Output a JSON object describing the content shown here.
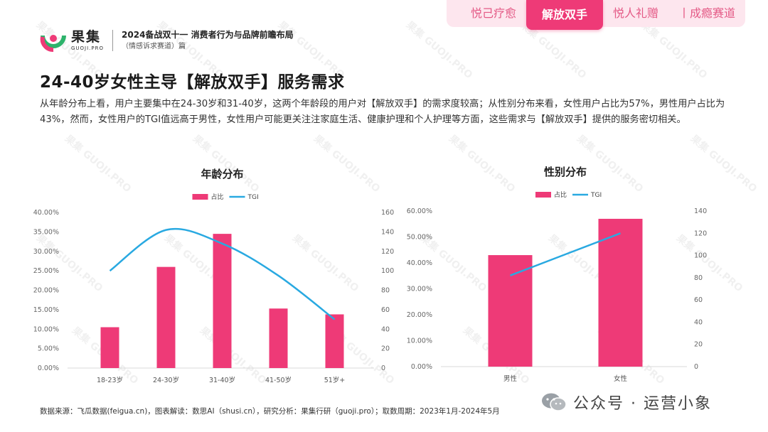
{
  "header": {
    "logo_cn": "果集",
    "logo_en": "GUOJI.PRO",
    "report_title": "2024备战双十一 消费者行为与品牌前瞻布局",
    "report_subtitle": "（情感诉求赛道）篇"
  },
  "tabs": [
    {
      "label": "悦己疗愈",
      "active": false
    },
    {
      "label": "解放双手",
      "active": true
    },
    {
      "label": "悦人礼赠",
      "active": false
    },
    {
      "label": "丨成瘾赛道",
      "active": false
    }
  ],
  "headline": "24-40岁女性主导【解放双手】服务需求",
  "description": "从年龄分布上看，用户主要集中在24-30岁和31-40岁，这两个年龄段的用户对【解放双手】的需求度较高；从性别分布来看，女性用户占比为57%，男性用户占比为43%，然而，女性用户的TGI值远高于男性，女性用户可能更关注注家庭生活、健康护理和个人护理等方面，这些需求与【解放双手】提供的服务密切相关。",
  "colors": {
    "bar": "#ee3a77",
    "line": "#29a9e1",
    "accent": "#ee3a77",
    "tab_bg": "#fde6ee"
  },
  "chart_data": [
    {
      "type": "bar",
      "title": "年龄分布",
      "legend": [
        "占比",
        "TGI"
      ],
      "categories": [
        "18-23岁",
        "24-30岁",
        "31-40岁",
        "41-50岁",
        "51岁+"
      ],
      "series": [
        {
          "name": "占比",
          "type": "bar",
          "axis": "left",
          "values": [
            10.5,
            26.0,
            34.5,
            15.3,
            13.8
          ]
        },
        {
          "name": "TGI",
          "type": "line",
          "axis": "right",
          "values": [
            100,
            142,
            128,
            95,
            50
          ]
        }
      ],
      "y_left": {
        "min": 0,
        "max": 40,
        "step": 5,
        "ticks": [
          "0.00%",
          "5.00%",
          "10.00%",
          "15.00%",
          "20.00%",
          "25.00%",
          "30.00%",
          "35.00%",
          "40.00%"
        ]
      },
      "y_right": {
        "min": 0,
        "max": 160,
        "step": 20,
        "ticks": [
          "0",
          "20",
          "40",
          "60",
          "80",
          "100",
          "120",
          "140",
          "160"
        ]
      },
      "grid": false,
      "legend_position": "top-center"
    },
    {
      "type": "bar",
      "title": "性别分布",
      "legend": [
        "占比",
        "TGI"
      ],
      "categories": [
        "男性",
        "女性"
      ],
      "series": [
        {
          "name": "占比",
          "type": "bar",
          "axis": "left",
          "values": [
            43,
            57
          ]
        },
        {
          "name": "TGI",
          "type": "line",
          "axis": "right",
          "values": [
            82,
            120
          ]
        }
      ],
      "y_left": {
        "min": 0,
        "max": 60,
        "step": 10,
        "ticks": [
          "0.00%",
          "10.00%",
          "20.00%",
          "30.00%",
          "40.00%",
          "50.00%",
          "60.00%"
        ]
      },
      "y_right": {
        "min": 0,
        "max": 140,
        "step": 20,
        "ticks": [
          "0",
          "20",
          "40",
          "60",
          "80",
          "100",
          "120",
          "140"
        ]
      },
      "grid": false,
      "legend_position": "top-center"
    }
  ],
  "footer": {
    "source": "数据来源：飞瓜数据(feigua.cn)，图表解读：数思AI（shusi.cn），研究分析：果集行研（guoji.pro）；取数周期：2023年1月-2024年5月",
    "brand": "公众号 · 运营小象"
  },
  "watermark": "果集 GUOJI.PRO"
}
